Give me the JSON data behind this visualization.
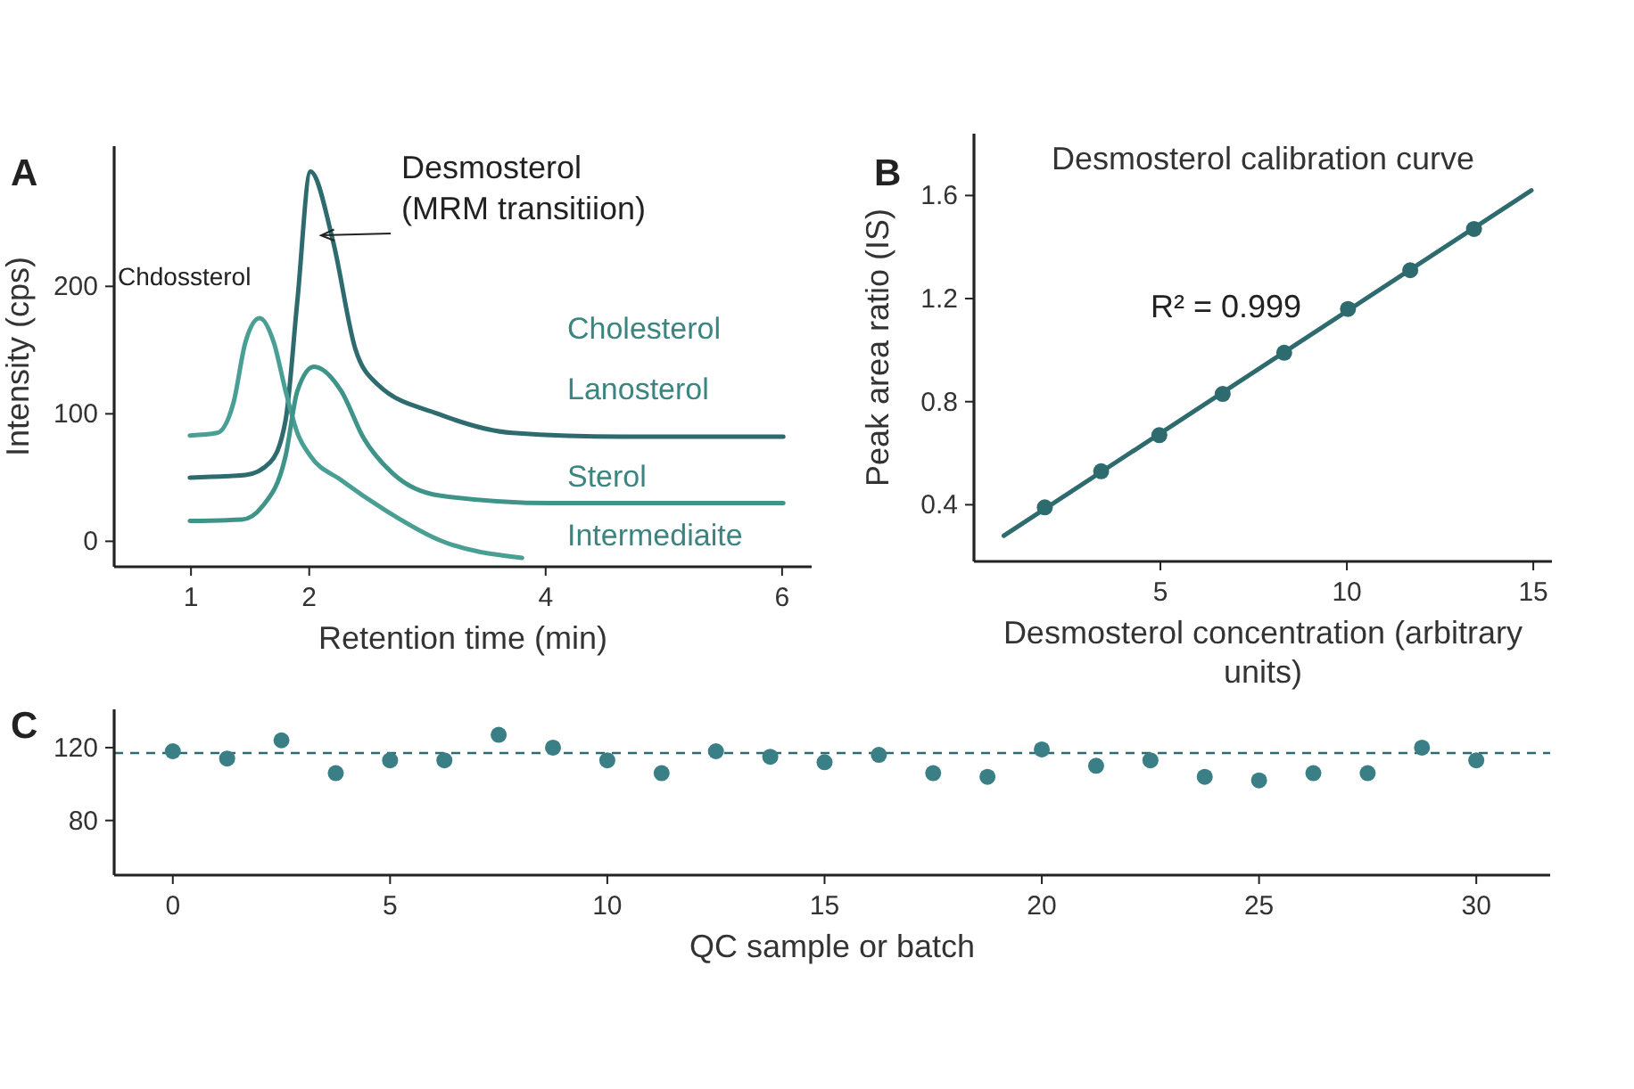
{
  "chart_data": [
    {
      "type": "line",
      "xlabel": "Retention time (min)",
      "ylabel": "Intensity (cps)",
      "xlim": [
        0.35,
        6.25
      ],
      "ylim": [
        -20,
        310
      ],
      "xticks": [
        1,
        2,
        4,
        6
      ],
      "yticks": [
        0,
        100,
        200
      ],
      "annotations": [
        "A",
        {
          "text": "Desmosterol\n(MRM transitiion)",
          "x": 2.1,
          "y": 240
        },
        "Chdossterol",
        "Cholesterol",
        "Lanosterol",
        "Sterol",
        "Intermediaite"
      ],
      "series": [
        {
          "color": "#2e6b6e",
          "x": [
            0.99,
            1.46,
            1.67,
            1.8,
            1.9,
            2.01,
            2.2,
            2.39,
            2.58,
            3.09,
            3.72,
            4.65,
            6.01
          ],
          "values": [
            50,
            52,
            62,
            95,
            189,
            290,
            236,
            151,
            123,
            100,
            85,
            82,
            82
          ]
        },
        {
          "color": "#4a9f94",
          "x": [
            0.99,
            1.22,
            1.36,
            1.46,
            1.58,
            1.7,
            1.8,
            1.9,
            2.01,
            2.27,
            2.65,
            3.1,
            3.8
          ],
          "values": [
            83,
            85,
            109,
            156,
            175,
            156,
            118,
            85,
            67,
            48,
            24,
            1,
            -13
          ]
        },
        {
          "color": "#3f948a",
          "x": [
            0.99,
            1.43,
            1.6,
            1.8,
            1.9,
            2.04,
            2.27,
            2.46,
            2.71,
            3.1,
            4.04,
            6.01
          ],
          "values": [
            16,
            17,
            27,
            67,
            118,
            137,
            118,
            81,
            53,
            36,
            30,
            30
          ]
        }
      ]
    },
    {
      "type": "scatter",
      "title": "Desmosterol calibration curve",
      "xlabel": "Desmosterol concentration (arbitrary units)",
      "ylabel": "Peak area ratio (IS)",
      "xlim": [
        0,
        15.5
      ],
      "ylim": [
        0.18,
        1.84
      ],
      "xticks": [
        5,
        10,
        15
      ],
      "yticks": [
        0.4,
        0.8,
        1.2,
        1.6
      ],
      "marker": "circle",
      "annotations": [
        "B",
        "R² = 0.999"
      ],
      "series": [
        {
          "type": "line",
          "marker": "none",
          "color": "#2e6b6e",
          "x": [
            0.8,
            14.95
          ],
          "values": [
            0.28,
            1.62
          ]
        },
        {
          "color": "#2e6b6e",
          "x": [
            1.9,
            3.41,
            4.97,
            6.67,
            8.32,
            10.03,
            11.7,
            13.41
          ],
          "values": [
            0.39,
            0.53,
            0.67,
            0.83,
            0.99,
            1.16,
            1.31,
            1.47
          ]
        }
      ]
    },
    {
      "type": "scatter",
      "xlabel": "QC sample or batch",
      "xlim": [
        -1.35,
        31.7
      ],
      "ylim": [
        50,
        141
      ],
      "xticks": [
        0,
        5,
        10,
        15,
        20,
        25,
        30
      ],
      "yticks": [
        80,
        120
      ],
      "marker": "circle",
      "annotations": [
        "C"
      ],
      "ref_lines": [
        {
          "axis": "y",
          "value": 117,
          "color": "#2e6b6e",
          "line_style": "dashed"
        }
      ],
      "series": [
        {
          "color": "#3a7f85",
          "x": [
            0,
            1.25,
            2.5,
            3.75,
            5,
            6.25,
            7.5,
            8.75,
            10,
            11.25,
            12.5,
            13.75,
            15,
            16.25,
            17.5,
            18.75,
            20,
            21.25,
            22.5,
            23.75,
            25,
            26.25,
            27.5,
            28.75,
            30
          ],
          "values": [
            118,
            114,
            124,
            106,
            113,
            113,
            127,
            120,
            113,
            106,
            118,
            115,
            112,
            116,
            106,
            104,
            119,
            110,
            113,
            104,
            102,
            106,
            106,
            120,
            113
          ]
        }
      ]
    }
  ]
}
